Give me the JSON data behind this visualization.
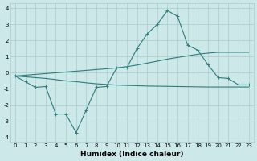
{
  "x": [
    0,
    1,
    2,
    3,
    4,
    5,
    6,
    7,
    8,
    9,
    10,
    11,
    12,
    13,
    14,
    15,
    16,
    17,
    18,
    19,
    20,
    21,
    22,
    23
  ],
  "y_main": [
    -0.2,
    -0.55,
    -0.9,
    -0.85,
    -2.55,
    -2.55,
    -3.7,
    -2.3,
    -0.9,
    -0.85,
    0.3,
    0.3,
    1.5,
    2.4,
    3.0,
    3.85,
    3.5,
    1.7,
    1.4,
    0.5,
    -0.3,
    -0.35,
    -0.75,
    -0.75
  ],
  "y_upper": [
    -0.2,
    -0.15,
    -0.1,
    -0.05,
    0.0,
    0.05,
    0.1,
    0.15,
    0.2,
    0.25,
    0.3,
    0.38,
    0.48,
    0.6,
    0.72,
    0.85,
    0.95,
    1.05,
    1.15,
    1.22,
    1.27,
    1.27,
    1.27,
    1.27
  ],
  "y_lower": [
    -0.2,
    -0.25,
    -0.3,
    -0.35,
    -0.42,
    -0.5,
    -0.55,
    -0.62,
    -0.68,
    -0.72,
    -0.76,
    -0.78,
    -0.8,
    -0.82,
    -0.83,
    -0.84,
    -0.85,
    -0.86,
    -0.87,
    -0.88,
    -0.88,
    -0.88,
    -0.88,
    -0.88
  ],
  "color": "#2e7d7d",
  "bg_color": "#cce8e8",
  "grid_color": "#aacccc",
  "xlabel": "Humidex (Indice chaleur)",
  "xlabel_fontsize": 6.5,
  "tick_fontsize": 5.0,
  "ylim": [
    -4.3,
    4.3
  ],
  "xlim": [
    -0.5,
    23.5
  ]
}
